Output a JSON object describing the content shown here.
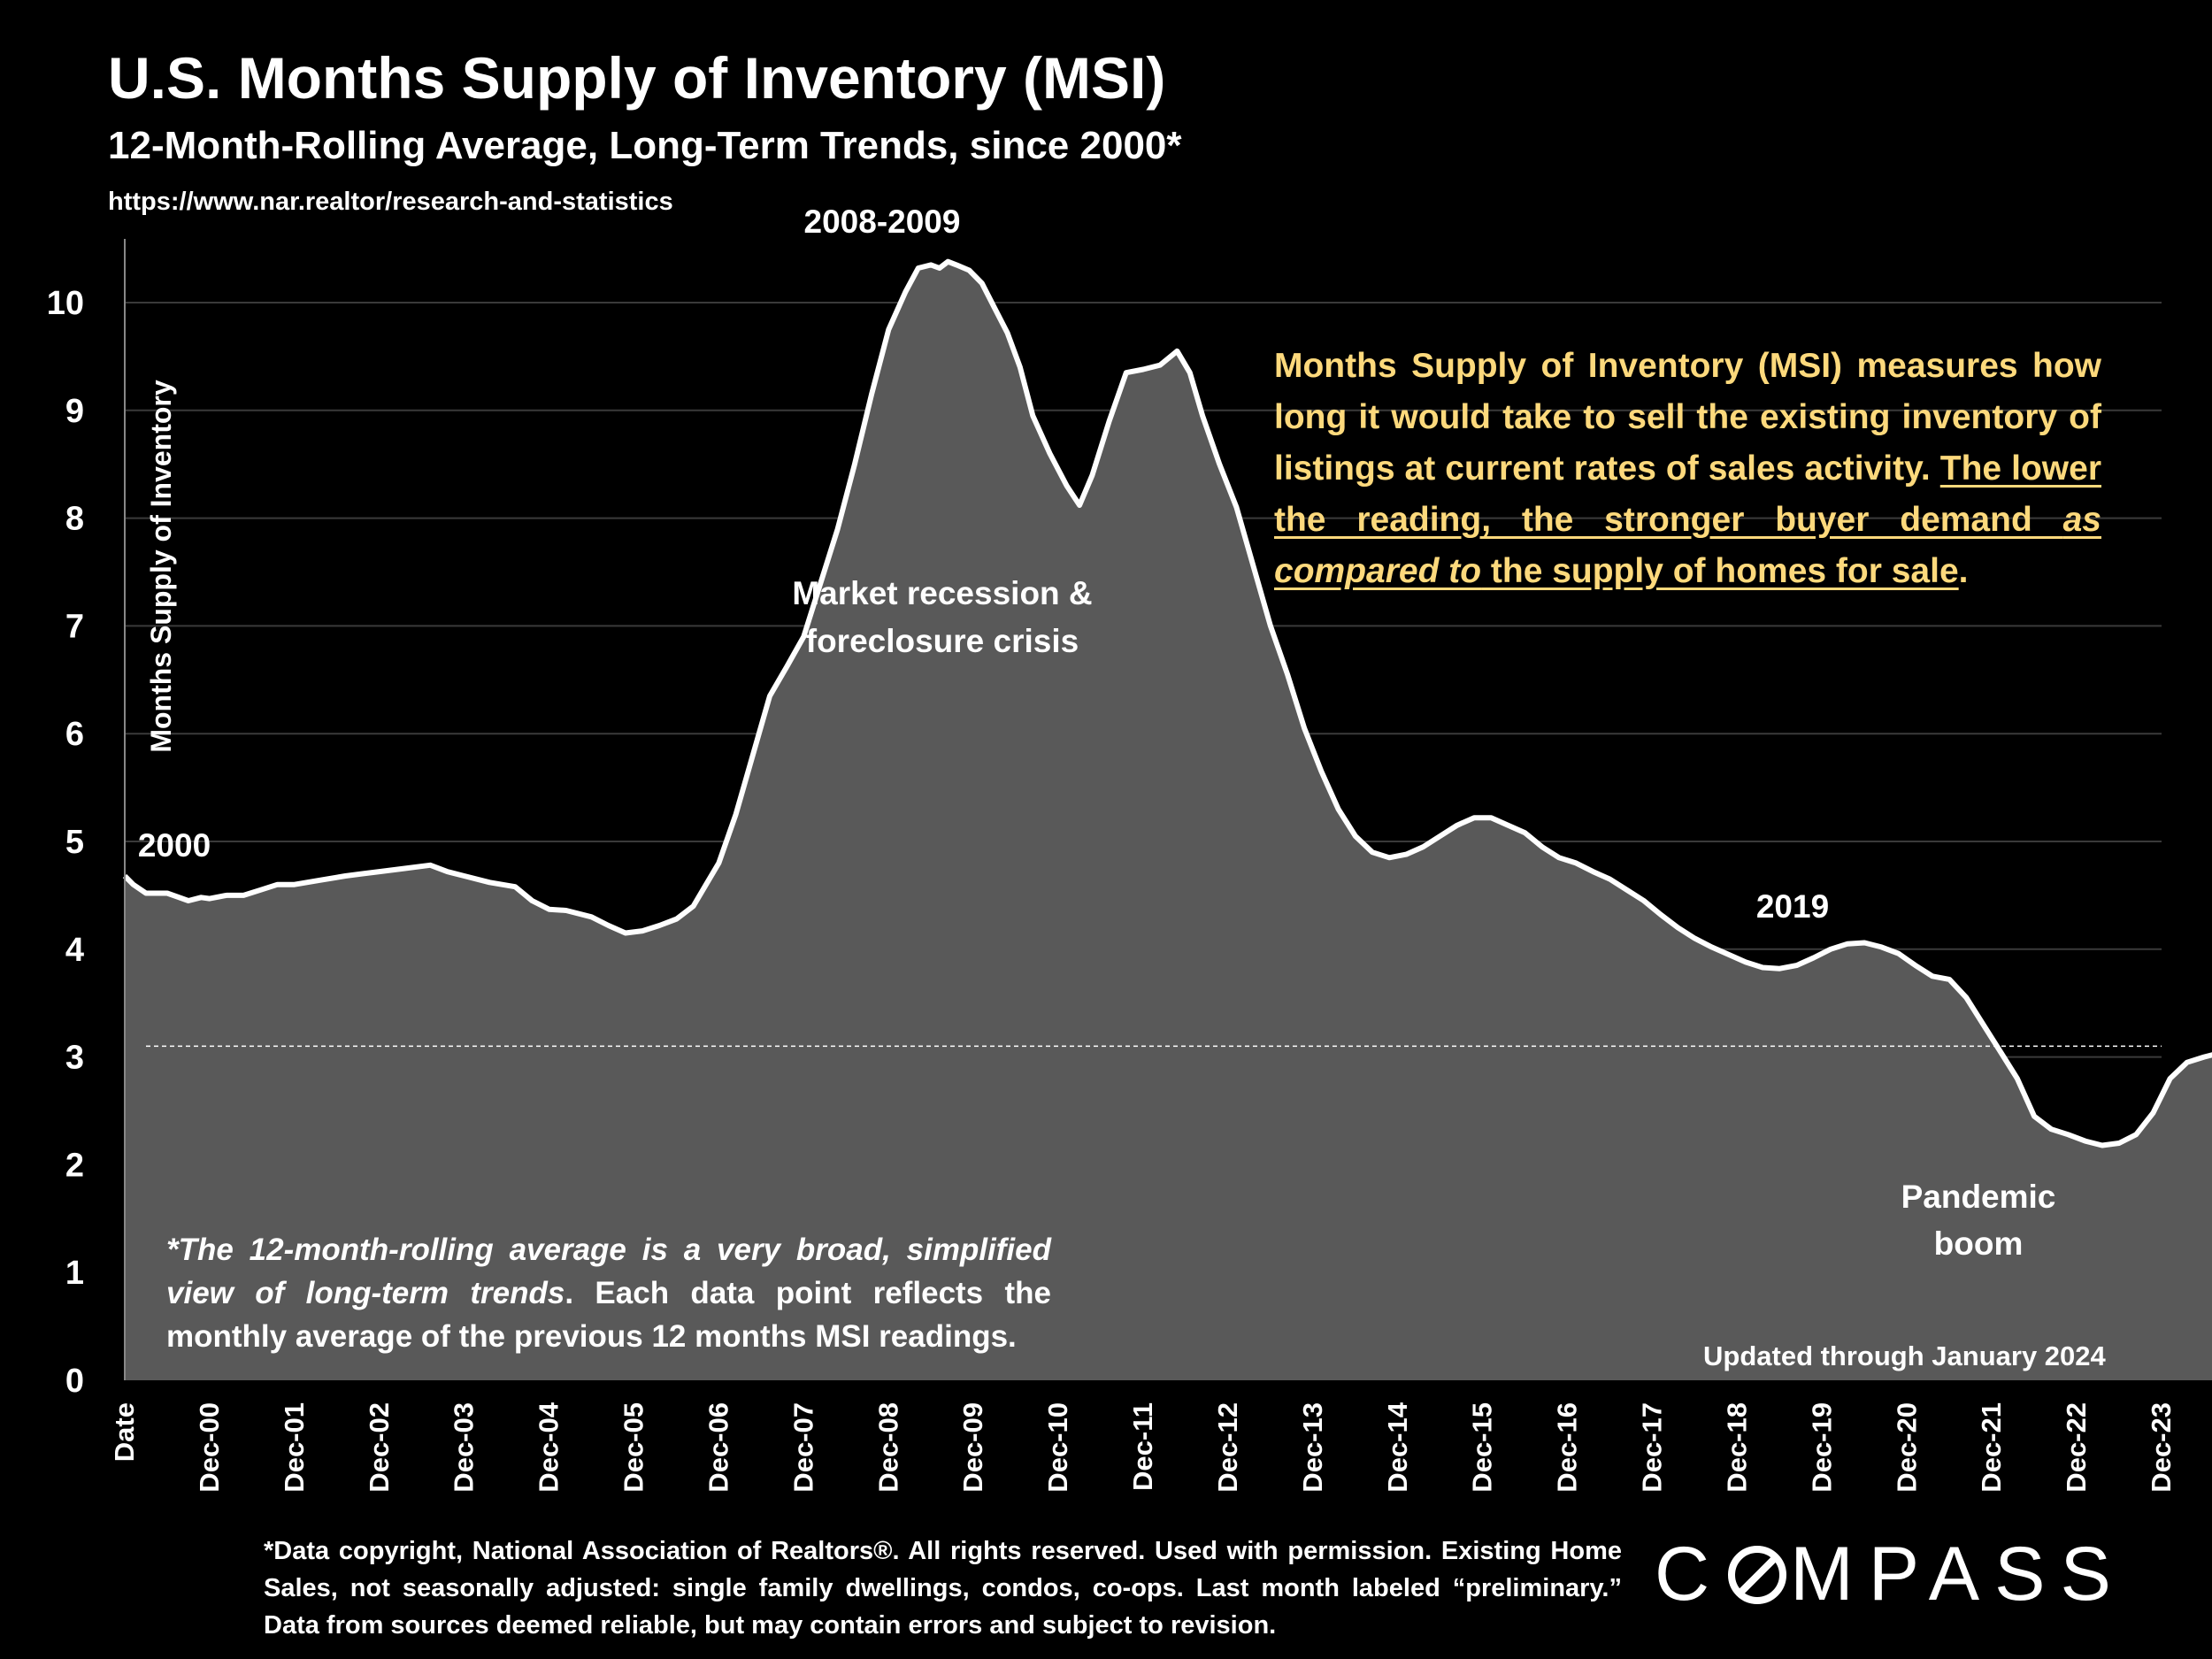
{
  "header": {
    "title": "U.S. Months Supply of Inventory (MSI)",
    "subtitle": "12-Month-Rolling Average, Long-Term Trends, since 2000*",
    "source": "https://www.nar.realtor/research-and-statistics"
  },
  "info": {
    "part1": "Months Supply of Inventory (MSI) measures how long it would take to sell the existing inventory of listings at current rates of sales activity. ",
    "part2": "The lower the reading, the stronger buyer demand ",
    "part3": "as compared to",
    "part4": " the supply of homes for sale",
    "part5": "."
  },
  "note": {
    "italic": "*The 12-month-rolling average is a very broad, simplified view of long-term trends",
    "rest": ". Each data point reflects the monthly average of the previous 12 months MSI readings."
  },
  "updated": "Updated through January 2024",
  "footnote": "*Data copyright, National Association of Realtors®. All rights reserved. Used with permission. Existing Home Sales, not seasonally adjusted: single family dwellings, condos, co-ops. Last month labeled “preliminary.” Data from sources deemed reliable, but may contain errors and subject to revision.",
  "logo": {
    "before": "C",
    "after": "MPASS"
  },
  "colors": {
    "background": "#000000",
    "area_fill": "#595959",
    "line": "#ffffff",
    "info_text": "#fdd97c"
  },
  "chart_data": {
    "type": "area",
    "title": "U.S. Months Supply of Inventory (MSI)",
    "ylabel": "Months Supply of Inventory",
    "xlabel": "",
    "ylim": [
      0,
      10
    ],
    "yticks": [
      0,
      1,
      2,
      3,
      4,
      5,
      6,
      7,
      8,
      9,
      10
    ],
    "grid": "horizontal",
    "x_ticks": [
      "Date",
      "Dec-00",
      "Dec-01",
      "Dec-02",
      "Dec-03",
      "Dec-04",
      "Dec-05",
      "Dec-06",
      "Dec-07",
      "Dec-08",
      "Dec-09",
      "Dec-10",
      "Dec-11",
      "Dec-12",
      "Dec-13",
      "Dec-14",
      "Dec-15",
      "Dec-16",
      "Dec-17",
      "Dec-18",
      "Dec-19",
      "Dec-20",
      "Dec-21",
      "Dec-22",
      "Dec-23"
    ],
    "reference_line": 3.1,
    "annotations": {
      "start": "2000",
      "peak": "2008-2009",
      "recession": [
        "Market recession &",
        "foreclosure crisis"
      ],
      "y2019": "2019",
      "pandemic": [
        "Pandemic",
        "boom"
      ]
    },
    "series": [
      {
        "points": [
          [
            0,
            4.68
          ],
          [
            0.1,
            4.6
          ],
          [
            0.25,
            4.52
          ],
          [
            0.5,
            4.52
          ],
          [
            0.75,
            4.45
          ],
          [
            0.9,
            4.48
          ],
          [
            1.0,
            4.47
          ],
          [
            1.2,
            4.5
          ],
          [
            1.4,
            4.5
          ],
          [
            1.6,
            4.55
          ],
          [
            1.8,
            4.6
          ],
          [
            2.0,
            4.6
          ],
          [
            2.3,
            4.64
          ],
          [
            2.6,
            4.68
          ],
          [
            2.8,
            4.7
          ],
          [
            3.0,
            4.72
          ],
          [
            3.3,
            4.75
          ],
          [
            3.6,
            4.78
          ],
          [
            3.8,
            4.72
          ],
          [
            4.0,
            4.68
          ],
          [
            4.3,
            4.62
          ],
          [
            4.6,
            4.58
          ],
          [
            4.8,
            4.45
          ],
          [
            5.0,
            4.37
          ],
          [
            5.2,
            4.36
          ],
          [
            5.5,
            4.3
          ],
          [
            5.7,
            4.22
          ],
          [
            5.9,
            4.15
          ],
          [
            6.1,
            4.17
          ],
          [
            6.3,
            4.22
          ],
          [
            6.5,
            4.28
          ],
          [
            6.7,
            4.4
          ],
          [
            6.85,
            4.6
          ],
          [
            7.0,
            4.8
          ],
          [
            7.2,
            5.25
          ],
          [
            7.4,
            5.8
          ],
          [
            7.6,
            6.35
          ],
          [
            7.8,
            6.62
          ],
          [
            8.0,
            6.9
          ],
          [
            8.2,
            7.4
          ],
          [
            8.4,
            7.9
          ],
          [
            8.6,
            8.5
          ],
          [
            8.8,
            9.15
          ],
          [
            9.0,
            9.75
          ],
          [
            9.2,
            10.1
          ],
          [
            9.35,
            10.32
          ],
          [
            9.5,
            10.35
          ],
          [
            9.6,
            10.32
          ],
          [
            9.7,
            10.38
          ],
          [
            9.8,
            10.35
          ],
          [
            9.95,
            10.3
          ],
          [
            10.1,
            10.18
          ],
          [
            10.25,
            9.95
          ],
          [
            10.4,
            9.72
          ],
          [
            10.55,
            9.4
          ],
          [
            10.7,
            8.95
          ],
          [
            10.9,
            8.6
          ],
          [
            11.1,
            8.3
          ],
          [
            11.25,
            8.12
          ],
          [
            11.4,
            8.4
          ],
          [
            11.6,
            8.9
          ],
          [
            11.8,
            9.35
          ],
          [
            12.0,
            9.38
          ],
          [
            12.2,
            9.42
          ],
          [
            12.4,
            9.55
          ],
          [
            12.55,
            9.35
          ],
          [
            12.7,
            8.95
          ],
          [
            12.9,
            8.5
          ],
          [
            13.1,
            8.1
          ],
          [
            13.3,
            7.55
          ],
          [
            13.5,
            7.0
          ],
          [
            13.7,
            6.55
          ],
          [
            13.9,
            6.05
          ],
          [
            14.1,
            5.65
          ],
          [
            14.3,
            5.3
          ],
          [
            14.5,
            5.05
          ],
          [
            14.7,
            4.9
          ],
          [
            14.9,
            4.85
          ],
          [
            15.1,
            4.88
          ],
          [
            15.3,
            4.95
          ],
          [
            15.5,
            5.05
          ],
          [
            15.7,
            5.15
          ],
          [
            15.9,
            5.22
          ],
          [
            16.1,
            5.22
          ],
          [
            16.3,
            5.15
          ],
          [
            16.5,
            5.08
          ],
          [
            16.7,
            4.95
          ],
          [
            16.9,
            4.85
          ],
          [
            17.1,
            4.8
          ],
          [
            17.3,
            4.72
          ],
          [
            17.5,
            4.65
          ],
          [
            17.7,
            4.55
          ],
          [
            17.9,
            4.45
          ],
          [
            18.1,
            4.32
          ],
          [
            18.3,
            4.2
          ],
          [
            18.5,
            4.1
          ],
          [
            18.7,
            4.02
          ],
          [
            18.9,
            3.95
          ],
          [
            19.1,
            3.88
          ],
          [
            19.3,
            3.83
          ],
          [
            19.5,
            3.82
          ],
          [
            19.7,
            3.85
          ],
          [
            19.9,
            3.92
          ],
          [
            20.1,
            4.0
          ],
          [
            20.3,
            4.05
          ],
          [
            20.5,
            4.06
          ],
          [
            20.7,
            4.02
          ],
          [
            20.9,
            3.96
          ],
          [
            21.1,
            3.85
          ],
          [
            21.3,
            3.75
          ],
          [
            21.5,
            3.72
          ],
          [
            21.7,
            3.55
          ],
          [
            21.9,
            3.3
          ],
          [
            22.1,
            3.05
          ],
          [
            22.3,
            2.8
          ],
          [
            22.5,
            2.45
          ],
          [
            22.7,
            2.33
          ],
          [
            22.9,
            2.28
          ],
          [
            23.1,
            2.22
          ],
          [
            23.3,
            2.18
          ],
          [
            23.5,
            2.2
          ],
          [
            23.7,
            2.28
          ],
          [
            23.9,
            2.48
          ],
          [
            24.1,
            2.8
          ],
          [
            24.3,
            2.95
          ],
          [
            24.5,
            3.0
          ],
          [
            24.7,
            3.04
          ],
          [
            24.9,
            3.1
          ],
          [
            25.0,
            3.12
          ]
        ]
      }
    ]
  }
}
